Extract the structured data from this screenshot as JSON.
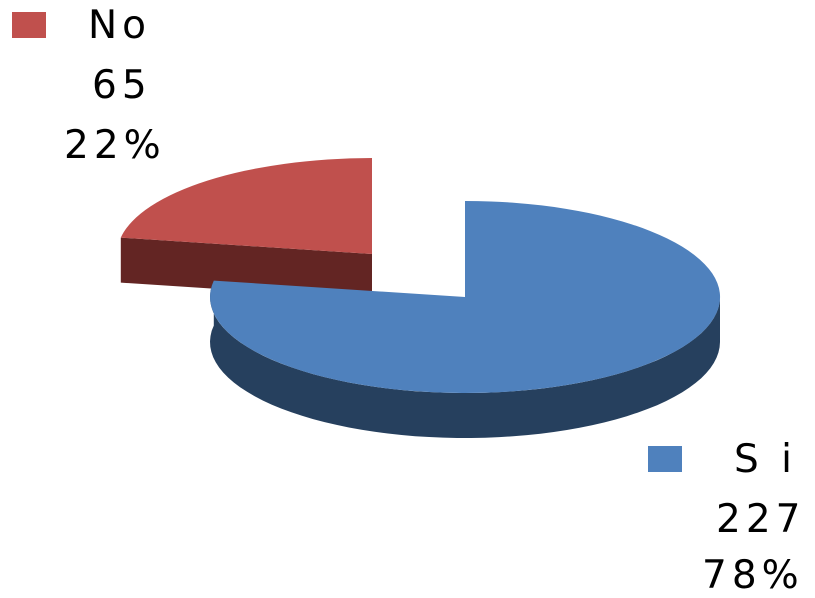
{
  "chart_data": {
    "type": "pie",
    "style": "3d-exploded",
    "slices": [
      {
        "name": "No",
        "value": 65,
        "percent_label": "22%",
        "color": "#C0504D",
        "side_color": "#632523"
      },
      {
        "name": "Si",
        "value": 227,
        "percent_label": "78%",
        "color": "#4F81BD",
        "side_color": "#26405E"
      }
    ]
  },
  "labels": {
    "no": {
      "name": "No",
      "value": "65",
      "percent": "22%"
    },
    "si": {
      "name": "S i",
      "value": "227",
      "percent": "78%"
    }
  }
}
